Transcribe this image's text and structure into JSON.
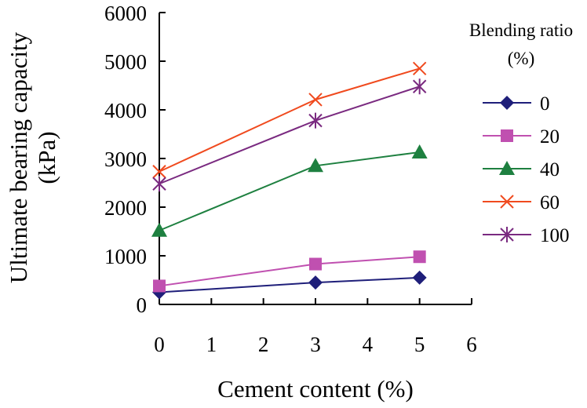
{
  "chart_data": {
    "type": "line",
    "title": "",
    "xlabel": "Cement content (%)",
    "ylabel_line1": "Ultimate bearing capacity",
    "ylabel_line2": "(kPa)",
    "xlim": [
      0,
      6
    ],
    "ylim": [
      0,
      6000
    ],
    "xticks": [
      0,
      1,
      2,
      3,
      4,
      5,
      6
    ],
    "yticks": [
      0,
      1000,
      2000,
      3000,
      4000,
      5000,
      6000
    ],
    "x": [
      0,
      3,
      5
    ],
    "grid": false,
    "legend": {
      "position": "right",
      "title_line1": "Blending ratio",
      "title_line2": "(%)"
    },
    "series": [
      {
        "name": "0",
        "values": [
          250,
          450,
          550
        ],
        "color": "#1f1f7a",
        "marker": "diamond"
      },
      {
        "name": "20",
        "values": [
          380,
          830,
          980
        ],
        "color": "#c050b0",
        "marker": "square"
      },
      {
        "name": "40",
        "values": [
          1520,
          2850,
          3130
        ],
        "color": "#1e8040",
        "marker": "triangle"
      },
      {
        "name": "60",
        "values": [
          2730,
          4210,
          4850
        ],
        "color": "#f04a1e",
        "marker": "x"
      },
      {
        "name": "100",
        "values": [
          2480,
          3780,
          4480
        ],
        "color": "#7a2a80",
        "marker": "star"
      }
    ]
  }
}
